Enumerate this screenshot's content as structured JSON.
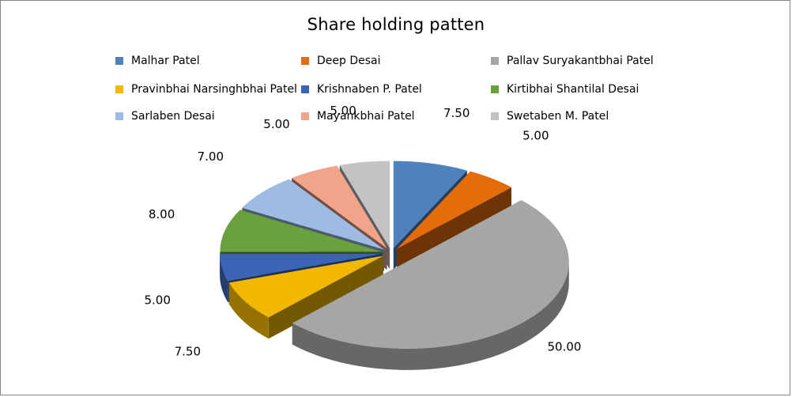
{
  "chart_data": {
    "type": "pie",
    "title": "Share holding patten",
    "legend_position": "top",
    "slices": [
      {
        "label": "Malhar Patel",
        "value": 7.5,
        "value_label": "7.50",
        "color": "#4F81BD"
      },
      {
        "label": "Deep Desai",
        "value": 5.0,
        "value_label": "5.00",
        "color": "#E46C0A"
      },
      {
        "label": "Pallav Suryakantbhai  Patel",
        "value": 50.0,
        "value_label": "50.00",
        "color": "#A6A6A6"
      },
      {
        "label": "Pravinbhai Narsinghbhai Patel",
        "value": 7.5,
        "value_label": "7.50",
        "color": "#F2B800"
      },
      {
        "label": "Krishnaben  P. Patel",
        "value": 5.0,
        "value_label": "5.00",
        "color": "#3C64B4"
      },
      {
        "label": "Kirtibhai Shantilal Desai",
        "value": 8.0,
        "value_label": "8.00",
        "color": "#6AA13E"
      },
      {
        "label": "Sarlaben Desai",
        "value": 7.0,
        "value_label": "7.00",
        "color": "#9DBBE3"
      },
      {
        "label": "Mayankbhai Patel",
        "value": 5.0,
        "value_label": "5.00",
        "color": "#F2A48A"
      },
      {
        "label": "Swetaben M. Patel",
        "value": 5.0,
        "value_label": "5.00",
        "color": "#C3C3C3"
      }
    ]
  }
}
